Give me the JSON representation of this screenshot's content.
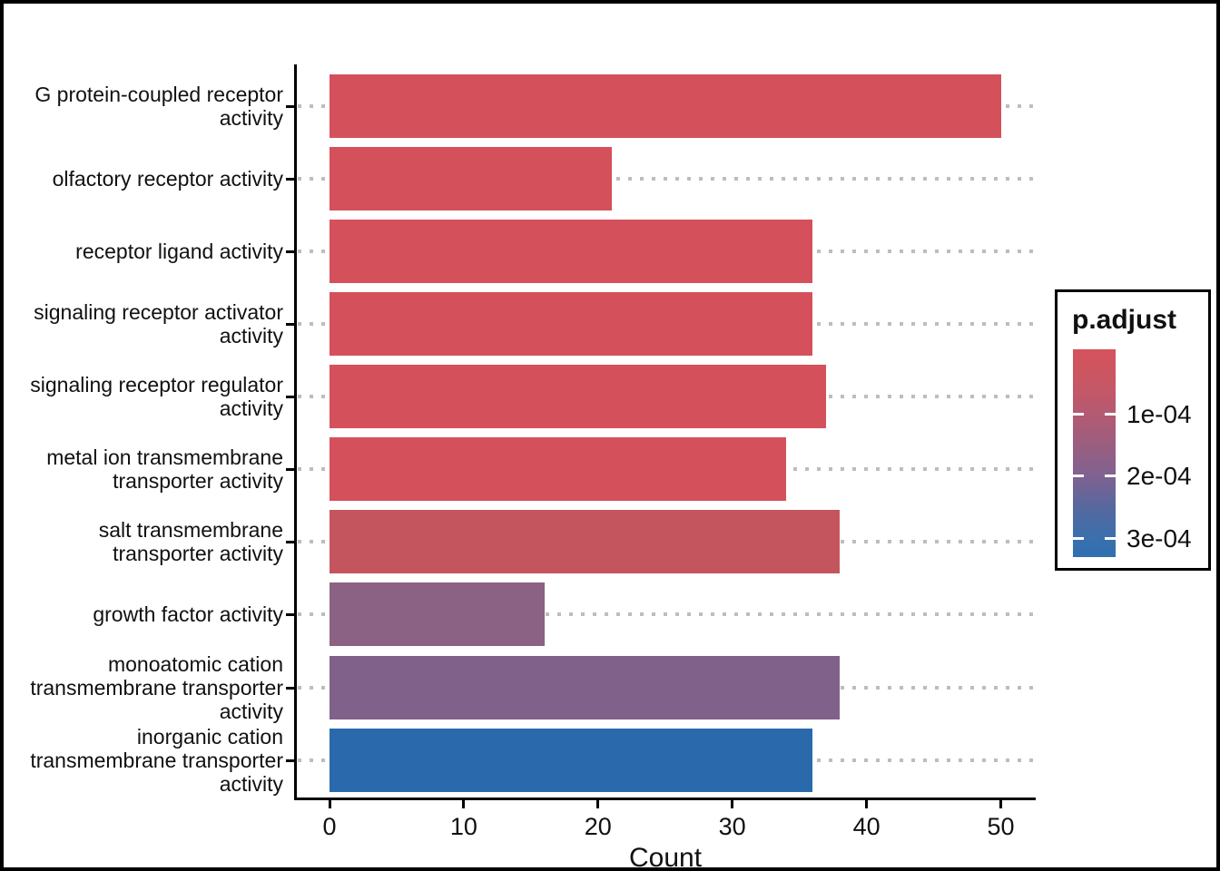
{
  "chart_data": {
    "type": "bar",
    "orientation": "horizontal",
    "title": "",
    "xlabel": "Count",
    "x_ticks": [
      0,
      10,
      20,
      30,
      40,
      50
    ],
    "xlim": [
      -2.5,
      52.5
    ],
    "grid": "dotted horizontal line per category, light gray, behind bars",
    "legend_position": "right",
    "categories": [
      "G protein-coupled receptor activity",
      "olfactory receptor activity",
      "receptor ligand activity",
      "signaling receptor activator activity",
      "signaling receptor regulator activity",
      "metal ion transmembrane transporter activity",
      "salt transmembrane transporter activity",
      "growth factor activity",
      "monoatomic cation transmembrane transporter activity",
      "inorganic cation transmembrane transporter activity"
    ],
    "category_label_lines": [
      [
        "G protein-coupled receptor",
        "activity"
      ],
      [
        "olfactory receptor activity"
      ],
      [
        "receptor ligand activity"
      ],
      [
        "signaling receptor activator",
        "activity"
      ],
      [
        "signaling receptor regulator",
        "activity"
      ],
      [
        "metal ion transmembrane",
        "transporter activity"
      ],
      [
        "salt transmembrane",
        "transporter activity"
      ],
      [
        "growth factor activity"
      ],
      [
        "monoatomic cation",
        "transmembrane transporter",
        "activity"
      ],
      [
        "inorganic cation",
        "transmembrane transporter",
        "activity"
      ]
    ],
    "values": [
      50,
      21,
      36,
      36,
      37,
      34,
      38,
      16,
      38,
      36
    ],
    "bar_colors": [
      "#d4515b",
      "#d4515b",
      "#d4515b",
      "#d4515b",
      "#d4515b",
      "#d4515b",
      "#c4555f",
      "#8b6283",
      "#7f6189",
      "#2a69ac"
    ],
    "legend": {
      "title": "p.adjust",
      "ticks": [
        {
          "label": "1e-04",
          "pos": 0.314
        },
        {
          "label": "2e-04",
          "pos": 0.611
        },
        {
          "label": "3e-04",
          "pos": 0.912
        }
      ],
      "gradient_stops": [
        {
          "color": "#d6525c",
          "pos": 0
        },
        {
          "color": "#c65765",
          "pos": 0.18
        },
        {
          "color": "#b45a72",
          "pos": 0.31
        },
        {
          "color": "#9c5e7e",
          "pos": 0.45
        },
        {
          "color": "#7f6290",
          "pos": 0.61
        },
        {
          "color": "#57689e",
          "pos": 0.76
        },
        {
          "color": "#3a70ad",
          "pos": 0.91
        },
        {
          "color": "#2f6fb1",
          "pos": 1
        }
      ],
      "low_color": "#d6525c",
      "high_color": "#2f6fb1"
    },
    "colors": {
      "axis": "#000000",
      "gridline": "#bdbdbd",
      "text": "#111111",
      "background": "#ffffff",
      "frame_border": "#000000"
    }
  }
}
